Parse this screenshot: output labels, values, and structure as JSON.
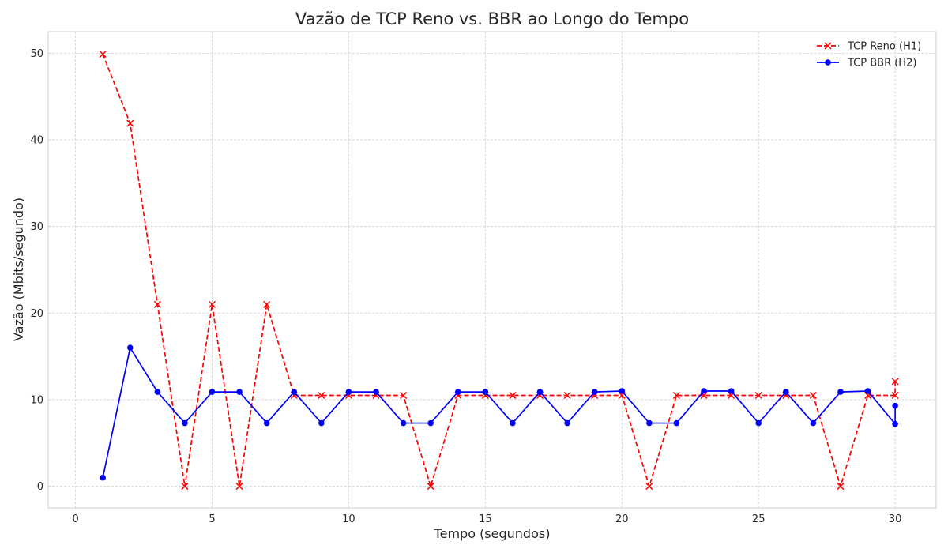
{
  "chart_data": {
    "type": "line",
    "title": "Vazão de TCP Reno vs. BBR ao Longo do Tempo",
    "xlabel": "Tempo (segundos)",
    "ylabel": "Vazão (Mbits/segundo)",
    "xlim": [
      -1,
      31.5
    ],
    "ylim": [
      -2.5,
      52.5
    ],
    "xticks": [
      0,
      5,
      10,
      15,
      20,
      25,
      30
    ],
    "yticks": [
      0,
      10,
      20,
      30,
      40,
      50
    ],
    "grid": true,
    "legend_position": "top-right",
    "series": [
      {
        "name": "TCP Reno (H1)",
        "color": "#ff0000",
        "line_style": "dashed",
        "marker": "x",
        "points": [
          [
            1,
            49.9
          ],
          [
            2,
            41.9
          ],
          [
            3,
            21.0
          ],
          [
            4,
            0.0
          ],
          [
            5,
            21.0
          ],
          [
            6,
            0.0
          ],
          [
            7,
            21.0
          ],
          [
            8,
            10.5
          ],
          [
            9,
            10.5
          ],
          [
            10,
            10.5
          ],
          [
            11,
            10.5
          ],
          [
            12,
            10.5
          ],
          [
            13,
            0.0
          ],
          [
            14,
            10.5
          ],
          [
            15,
            10.5
          ],
          [
            16,
            10.5
          ],
          [
            17,
            10.5
          ],
          [
            18,
            10.5
          ],
          [
            19,
            10.5
          ],
          [
            20,
            10.5
          ],
          [
            21,
            0.0
          ],
          [
            22,
            10.5
          ],
          [
            23,
            10.5
          ],
          [
            24,
            10.5
          ],
          [
            25,
            10.5
          ],
          [
            26,
            10.5
          ],
          [
            27,
            10.5
          ],
          [
            28,
            0.0
          ],
          [
            29,
            10.5
          ],
          [
            30,
            10.5
          ],
          [
            30,
            12.1
          ]
        ]
      },
      {
        "name": "TCP BBR (H2)",
        "color": "#0000ff",
        "line_style": "solid",
        "marker": "circle",
        "points": [
          [
            1,
            1.0
          ],
          [
            2,
            16.0
          ],
          [
            3,
            10.9
          ],
          [
            4,
            7.3
          ],
          [
            5,
            10.9
          ],
          [
            6,
            10.9
          ],
          [
            7,
            7.3
          ],
          [
            8,
            10.9
          ],
          [
            9,
            7.3
          ],
          [
            10,
            10.9
          ],
          [
            11,
            10.9
          ],
          [
            12,
            7.3
          ],
          [
            13,
            7.3
          ],
          [
            14,
            10.9
          ],
          [
            15,
            10.9
          ],
          [
            16,
            7.3
          ],
          [
            17,
            10.9
          ],
          [
            18,
            7.3
          ],
          [
            19,
            10.9
          ],
          [
            20,
            11.0
          ],
          [
            21,
            7.3
          ],
          [
            22,
            7.3
          ],
          [
            23,
            11.0
          ],
          [
            24,
            11.0
          ],
          [
            25,
            7.3
          ],
          [
            26,
            10.9
          ],
          [
            27,
            7.3
          ],
          [
            28,
            10.9
          ],
          [
            29,
            11.0
          ],
          [
            30,
            7.2
          ],
          [
            30,
            9.3
          ]
        ]
      }
    ]
  }
}
